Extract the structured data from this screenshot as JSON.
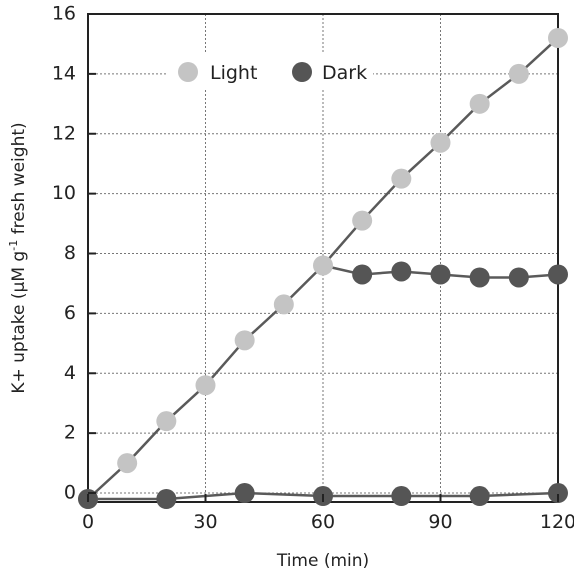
{
  "chart_data": {
    "type": "line",
    "xlabel": "Time (min)",
    "ylabel_main": "K+ uptake  (μM  g",
    "ylabel_sup": "-1",
    "ylabel_tail": " fresh weight)",
    "xlim": [
      0,
      120
    ],
    "ylim": [
      -0.3,
      16
    ],
    "xticks": [
      0,
      30,
      60,
      90,
      120
    ],
    "yticks": [
      0,
      2,
      4,
      6,
      8,
      10,
      12,
      14,
      16
    ],
    "grid": true,
    "legend_position": "top",
    "series": [
      {
        "name": "Light",
        "color": "#c4c4c4",
        "x": [
          0,
          10,
          20,
          30,
          40,
          50,
          60,
          70,
          80,
          90,
          100,
          110,
          120
        ],
        "y": [
          -0.2,
          1.0,
          2.4,
          3.6,
          5.1,
          6.3,
          7.6,
          9.1,
          10.5,
          11.7,
          13.0,
          14.0,
          15.2
        ]
      },
      {
        "name": "Dark",
        "color": "#555555",
        "x": [
          0,
          20,
          40,
          60,
          80,
          100,
          120,
          70,
          80,
          90,
          100,
          110,
          120
        ],
        "y": [
          -0.2,
          -0.2,
          0.0,
          -0.1,
          -0.1,
          -0.1,
          0.0,
          7.3,
          7.4,
          7.3,
          7.2,
          7.2,
          7.3
        ],
        "segments": [
          [
            0,
            6
          ],
          [
            7,
            12
          ]
        ],
        "branch_from_light_x": 60
      }
    ]
  }
}
